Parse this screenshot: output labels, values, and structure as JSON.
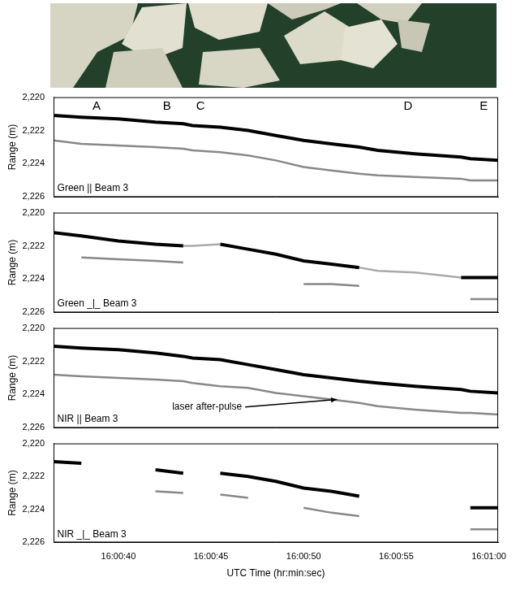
{
  "chart_data": [
    {
      "type": "line",
      "y_label": "Range (m)",
      "xlim": [
        36.5,
        60.5
      ],
      "ylim": [
        2226,
        2220
      ],
      "yticks": [
        {
          "value": 2220,
          "label": "2,220"
        },
        {
          "value": 2222,
          "label": "2,222"
        },
        {
          "value": 2224,
          "label": "2,224"
        },
        {
          "value": 2226,
          "label": "2,226"
        }
      ],
      "tick_labels": "y",
      "grid": false,
      "x": [
        36.5,
        38,
        40,
        42,
        43.5,
        44,
        45.5,
        47,
        48.5,
        50,
        51.5,
        53,
        54,
        56,
        58.5,
        59,
        60.5
      ],
      "series": [
        {
          "color": "#000000",
          "line_style": "solid",
          "values": [
            2221.1,
            2221.2,
            2221.3,
            2221.5,
            2221.6,
            2221.7,
            2221.8,
            2222.0,
            2222.3,
            2222.6,
            2222.8,
            2223.0,
            2223.2,
            2223.4,
            2223.6,
            2223.7,
            2223.8
          ]
        },
        {
          "color": "#888888",
          "line_style": "solid",
          "values": [
            2222.6,
            2222.8,
            2222.9,
            2223.0,
            2223.1,
            2223.2,
            2223.3,
            2223.5,
            2223.8,
            2224.2,
            2224.4,
            2224.6,
            2224.7,
            2224.8,
            2224.9,
            2225.0,
            2225.0
          ]
        }
      ],
      "annotations": [
        {
          "text": "A",
          "x": 38.6,
          "y": 2220.55
        },
        {
          "text": "B",
          "x": 42.4,
          "y": 2220.55
        },
        {
          "text": "C",
          "x": 44.2,
          "y": 2220.55
        },
        {
          "text": "D",
          "x": 55.4,
          "y": 2220.55
        },
        {
          "text": "E",
          "x": 59.5,
          "y": 2220.55
        },
        {
          "text": "Green || Beam 3",
          "x": 36.7,
          "y": 2225.5
        }
      ]
    },
    {
      "type": "line",
      "y_label": "Range (m)",
      "xlim": [
        36.5,
        60.5
      ],
      "ylim": [
        2226,
        2220
      ],
      "yticks": [
        {
          "value": 2220,
          "label": "2,220"
        },
        {
          "value": 2222,
          "label": "2,222"
        },
        {
          "value": 2224,
          "label": "2,224"
        },
        {
          "value": 2226,
          "label": "2,226"
        }
      ],
      "tick_labels": "y",
      "grid": false,
      "x": [
        36.5,
        38,
        40,
        42,
        43.5,
        44,
        45.5,
        47,
        48.5,
        50,
        51.5,
        53,
        54,
        56,
        58.5,
        59,
        60.5
      ],
      "series": [
        {
          "color": "#000000",
          "line_style": "solid",
          "values": [
            2221.2,
            2221.4,
            2221.7,
            2221.9,
            2222.0,
            null,
            2221.9,
            2222.2,
            2222.5,
            2222.9,
            2223.1,
            2223.3,
            null,
            null,
            2223.9,
            2223.9,
            2223.9
          ]
        },
        {
          "color": "#aaaaaa",
          "line_style": "solid",
          "values": [
            null,
            null,
            null,
            null,
            2222.0,
            2222.0,
            2221.9,
            null,
            null,
            null,
            null,
            2223.3,
            2223.5,
            2223.6,
            2223.9,
            null,
            null
          ]
        },
        {
          "color": "#888888",
          "line_style": "solid",
          "values": [
            null,
            2222.7,
            2222.8,
            2222.9,
            2223.0,
            null,
            null,
            null,
            null,
            2224.3,
            2224.3,
            2224.4,
            null,
            null,
            null,
            2225.2,
            2225.2
          ]
        }
      ],
      "annotations": [
        {
          "text": "Green _|_ Beam 3",
          "x": 36.7,
          "y": 2225.5
        }
      ]
    },
    {
      "type": "line",
      "y_label": "Range (m)",
      "xlim": [
        36.5,
        60.5
      ],
      "ylim": [
        2226,
        2220
      ],
      "yticks": [
        {
          "value": 2220,
          "label": "2,220"
        },
        {
          "value": 2222,
          "label": "2,222"
        },
        {
          "value": 2224,
          "label": "2,224"
        },
        {
          "value": 2226,
          "label": "2,226"
        }
      ],
      "tick_labels": "y",
      "grid": false,
      "x": [
        36.5,
        38,
        40,
        42,
        43.5,
        44,
        45.5,
        47,
        48.5,
        50,
        51.5,
        53,
        54,
        56,
        58.5,
        59,
        60.5
      ],
      "series": [
        {
          "color": "#000000",
          "line_style": "solid",
          "values": [
            2221.1,
            2221.2,
            2221.3,
            2221.5,
            2221.7,
            2221.8,
            2221.9,
            2222.2,
            2222.5,
            2222.8,
            2223.0,
            2223.2,
            2223.3,
            2223.5,
            2223.7,
            2223.8,
            2223.9
          ]
        },
        {
          "color": "#888888",
          "line_style": "solid",
          "values": [
            2222.8,
            2222.9,
            2223.0,
            2223.1,
            2223.2,
            2223.3,
            2223.5,
            2223.6,
            2223.9,
            2224.1,
            2224.3,
            2224.5,
            2224.7,
            2224.9,
            2225.1,
            2225.1,
            2225.2
          ]
        }
      ],
      "annotations": [
        {
          "text": "laser after-pulse",
          "x": 42.9,
          "y": 2224.75,
          "arrow_x": 51.8,
          "arrow_y": 2224.3
        },
        {
          "text": "NIR || Beam 3",
          "x": 36.7,
          "y": 2225.5
        }
      ]
    },
    {
      "type": "line",
      "y_label": "Range (m)",
      "x_label": "UTC Time (hr:min:sec)",
      "xlim": [
        36.5,
        60.5
      ],
      "ylim": [
        2226,
        2220
      ],
      "xticks": [
        {
          "value": 40,
          "label": "16:00:40"
        },
        {
          "value": 45,
          "label": "16:00:45"
        },
        {
          "value": 50,
          "label": "16:00:50"
        },
        {
          "value": 55,
          "label": "16:00:55"
        },
        {
          "value": 60,
          "label": "16:01:00"
        }
      ],
      "yticks": [
        {
          "value": 2220,
          "label": "2,220"
        },
        {
          "value": 2222,
          "label": "2,222"
        },
        {
          "value": 2224,
          "label": "2,224"
        },
        {
          "value": 2226,
          "label": "2,226"
        }
      ],
      "tick_labels": true,
      "grid": false,
      "x": [
        36.5,
        38,
        40,
        42,
        43.5,
        44,
        45.5,
        47,
        48.5,
        50,
        51.5,
        53,
        54,
        56,
        58.5,
        59,
        60.5
      ],
      "series": [
        {
          "color": "#000000",
          "line_style": "solid",
          "values": [
            2221.1,
            2221.2,
            null,
            2221.6,
            2221.8,
            null,
            2221.8,
            2222.0,
            2222.3,
            2222.7,
            2222.9,
            2223.2,
            null,
            null,
            null,
            2223.9,
            2223.9
          ]
        },
        {
          "color": "#888888",
          "line_style": "solid",
          "values": [
            null,
            null,
            null,
            2222.9,
            2223.0,
            null,
            2223.1,
            2223.3,
            null,
            2223.9,
            2224.2,
            2224.4,
            null,
            null,
            null,
            2225.2,
            2225.2
          ]
        }
      ],
      "annotations": [
        {
          "text": "NIR _|_ Beam 3",
          "x": 36.7,
          "y": 2225.5
        }
      ]
    }
  ]
}
